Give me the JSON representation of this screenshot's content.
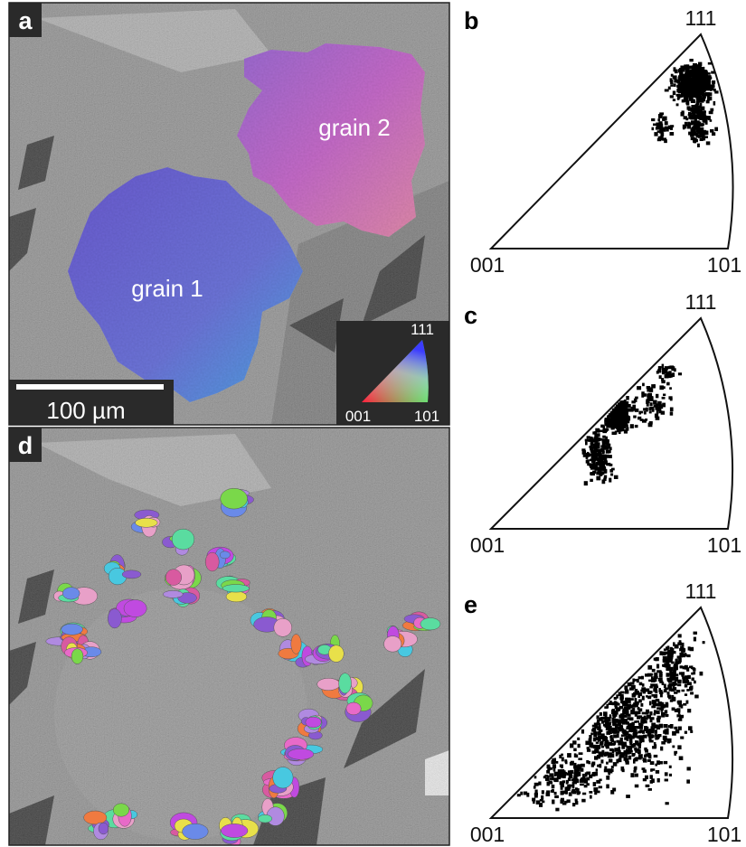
{
  "panels": [
    {
      "label": "a",
      "annotations": [
        "grain 2",
        "grain 1"
      ],
      "scale_bar": "100 µm",
      "color_key": {
        "top": "111",
        "left": "001",
        "right": "101"
      }
    },
    {
      "label": "b",
      "corners": {
        "top": "111",
        "left": "001",
        "right": "101"
      }
    },
    {
      "label": "c",
      "corners": {
        "top": "111",
        "left": "001",
        "right": "101"
      }
    },
    {
      "label": "d"
    },
    {
      "label": "e",
      "corners": {
        "top": "111",
        "left": "001",
        "right": "101"
      }
    }
  ]
}
